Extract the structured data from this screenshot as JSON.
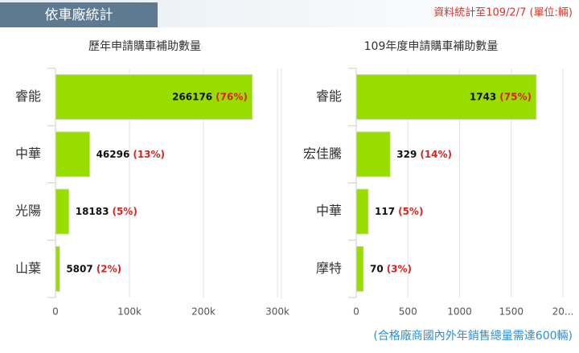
{
  "header": {
    "title": "依車廠統計",
    "note": "資料統計至109/2/7 (單位:輛)"
  },
  "chart_data": [
    {
      "type": "bar",
      "orientation": "horizontal",
      "title": "歷年申請購車補助數量",
      "categories": [
        "睿能",
        "中華",
        "光陽",
        "山葉"
      ],
      "values": [
        266176,
        46296,
        18183,
        5807
      ],
      "percent_labels": [
        "(76%)",
        "(13%)",
        "(5%)",
        "(2%)"
      ],
      "color": "#99dd00",
      "xlim": [
        0,
        300000
      ],
      "xticks": [
        0,
        {
          "value": 100000,
          "label": "100k"
        },
        {
          "value": 200000,
          "label": "200k"
        },
        {
          "value": 300000,
          "label": "300k"
        }
      ],
      "grid": true
    },
    {
      "type": "bar",
      "orientation": "horizontal",
      "title": "109年度申請購車補助數量",
      "categories": [
        "睿能",
        "宏佳騰",
        "中華",
        "摩特"
      ],
      "values": [
        1743,
        329,
        117,
        70
      ],
      "percent_labels": [
        "(75%)",
        "(14%)",
        "(5%)",
        "(3%)"
      ],
      "color": "#99dd00",
      "xlim": [
        0,
        2000
      ],
      "xticks": [
        0,
        500,
        1000,
        1500,
        {
          "value": 2000,
          "label": "20..."
        }
      ],
      "grid": true
    }
  ],
  "footer": {
    "note": "(合格廠商國內外年銷售總量需達600輛)"
  }
}
